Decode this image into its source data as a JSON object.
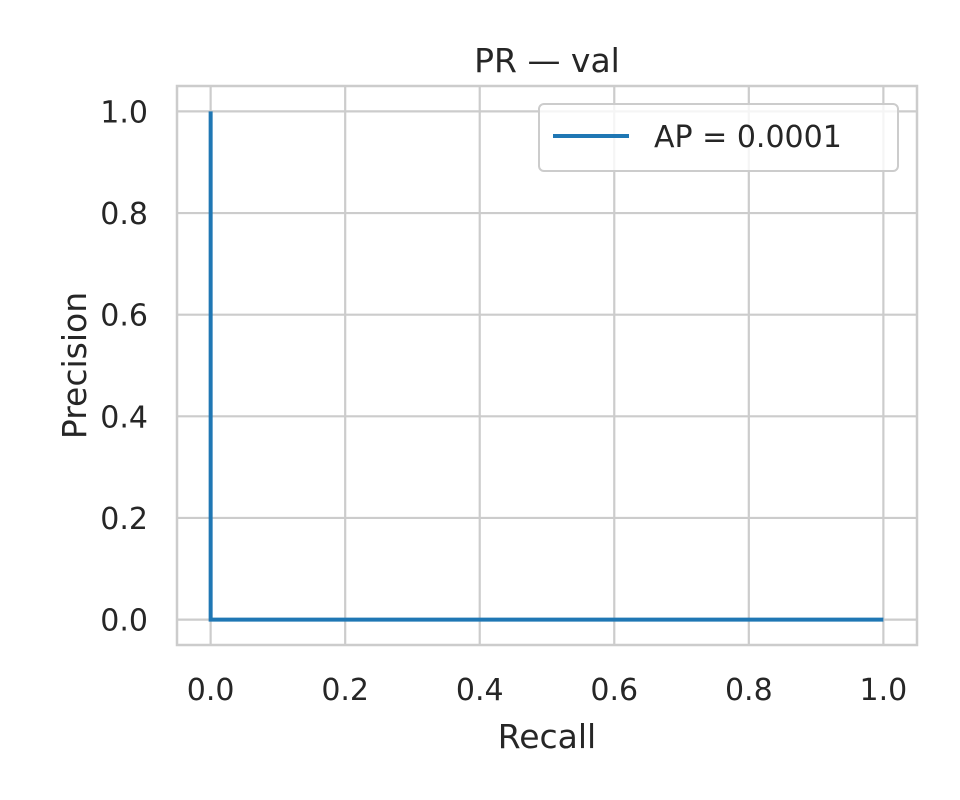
{
  "chart_data": {
    "type": "line",
    "title": "PR — val",
    "xlabel": "Recall",
    "ylabel": "Precision",
    "xlim": [
      -0.05,
      1.05
    ],
    "ylim": [
      -0.05,
      1.05
    ],
    "xticks": [
      0.0,
      0.2,
      0.4,
      0.6,
      0.8,
      1.0
    ],
    "xtick_labels": [
      "0.0",
      "0.2",
      "0.4",
      "0.6",
      "0.8",
      "1.0"
    ],
    "yticks": [
      0.0,
      0.2,
      0.4,
      0.6,
      0.8,
      1.0
    ],
    "ytick_labels": [
      "0.0",
      "0.2",
      "0.4",
      "0.6",
      "0.8",
      "1.0"
    ],
    "grid": true,
    "legend_position": "top-right",
    "series": [
      {
        "name": "AP = 0.0001",
        "color": "#1f77b4",
        "x": [
          0.0,
          0.0,
          1.0
        ],
        "y": [
          1.0,
          0.0,
          0.0
        ]
      }
    ]
  },
  "colors": {
    "grid": "#cccccc",
    "spine": "#cccccc",
    "text": "#262626"
  }
}
